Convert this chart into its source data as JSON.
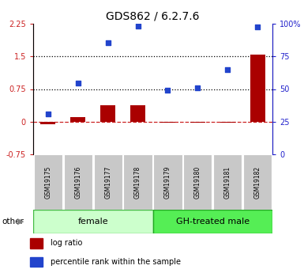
{
  "title": "GDS862 / 6.2.7.6",
  "samples": [
    "GSM19175",
    "GSM19176",
    "GSM19177",
    "GSM19178",
    "GSM19179",
    "GSM19180",
    "GSM19181",
    "GSM19182"
  ],
  "log_ratio": [
    -0.05,
    0.1,
    0.38,
    0.38,
    -0.03,
    -0.02,
    -0.02,
    1.55
  ],
  "percentile_rank": [
    0.18,
    0.88,
    1.82,
    2.2,
    0.72,
    0.78,
    1.2,
    2.18
  ],
  "bar_color": "#aa0000",
  "dot_color": "#2244cc",
  "ylim_left": [
    -0.75,
    2.25
  ],
  "ylim_right": [
    0,
    100
  ],
  "yticks_left": [
    -0.75,
    0,
    0.75,
    1.5,
    2.25
  ],
  "yticks_right": [
    0,
    25,
    50,
    75,
    100
  ],
  "hlines": [
    0.75,
    1.5
  ],
  "hline_zero_color": "#cc2222",
  "female_label": "female",
  "male_label": "GH-treated male",
  "female_color": "#ccffcc",
  "male_color": "#55ee55",
  "gray_color": "#c8c8c8",
  "sample_box_edge": "#aaaaaa",
  "legend_bar_label": "log ratio",
  "legend_dot_label": "percentile rank within the sample",
  "other_label": "other",
  "right_axis_color": "#2222cc",
  "left_axis_color": "#cc2222",
  "title_fontsize": 10,
  "tick_fontsize": 7,
  "sample_fontsize": 5.5,
  "group_fontsize": 8,
  "legend_fontsize": 7
}
